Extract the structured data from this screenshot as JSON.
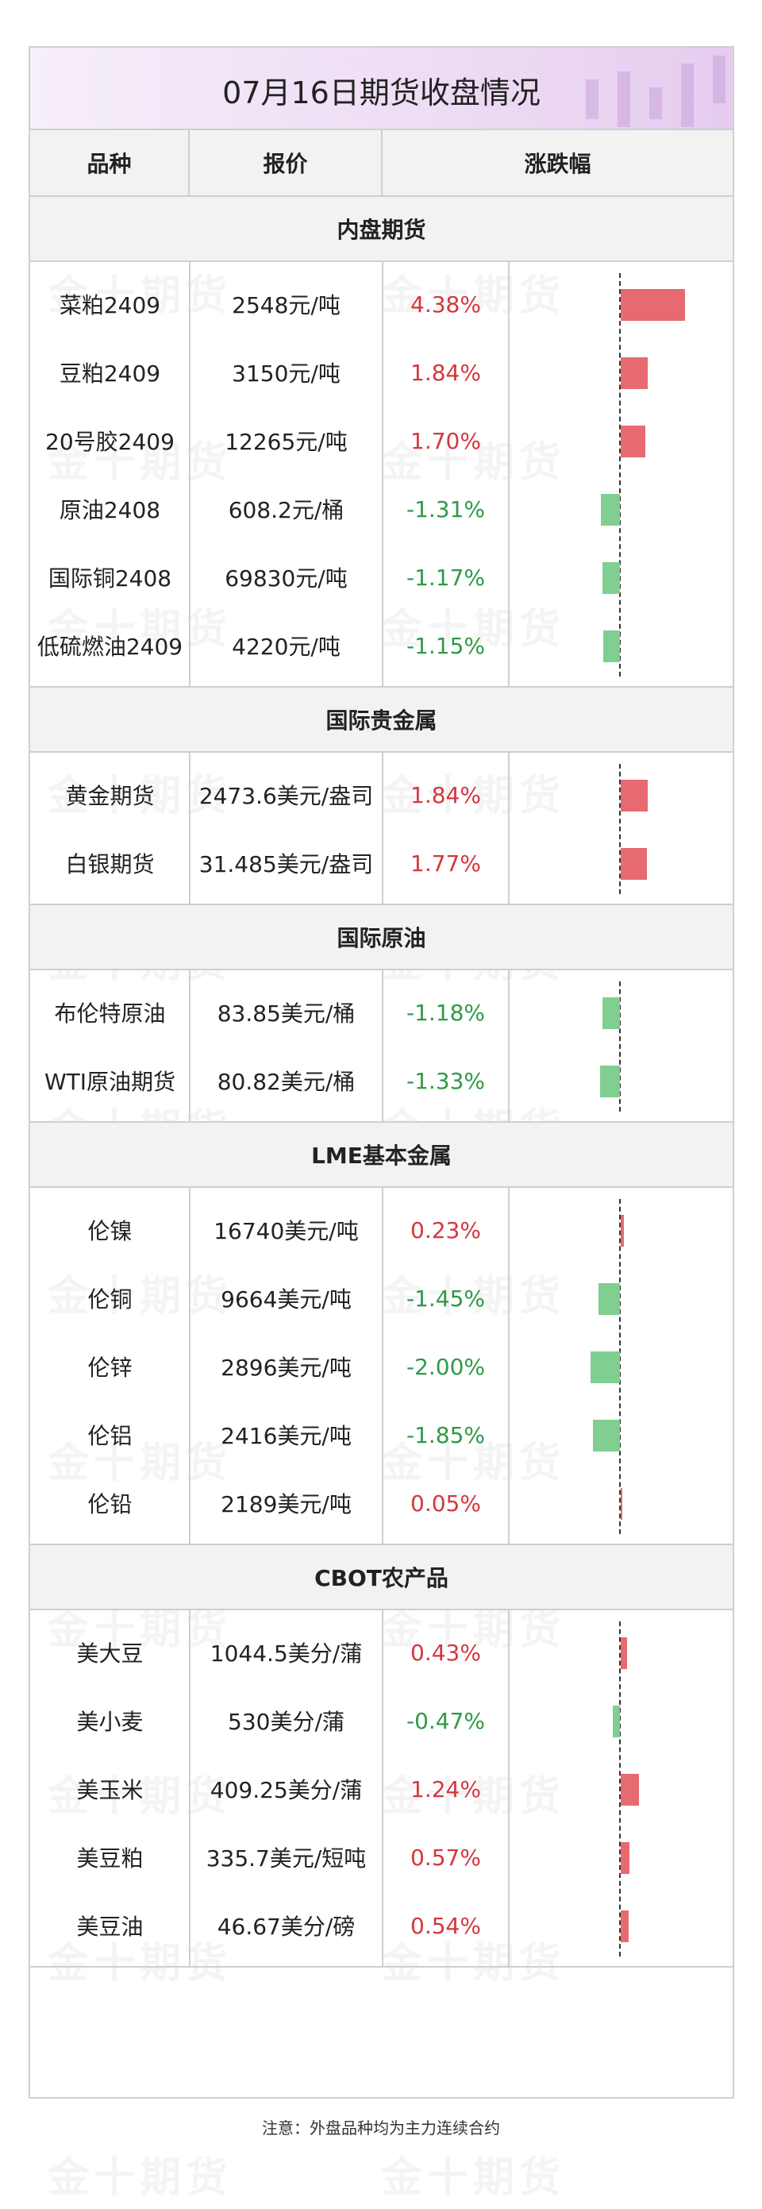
{
  "title": "07月16日期货收盘情况",
  "columns": {
    "name": "品种",
    "price": "报价",
    "change": "涨跌幅"
  },
  "watermark": "金十期货",
  "colors": {
    "up": "#d4373d",
    "down": "#2e9a47",
    "bar_up": "#e66a6f",
    "bar_down": "#80cf90"
  },
  "sections": [
    {
      "title": "内盘期货",
      "rows": [
        {
          "name": "菜粕2409",
          "price": "2548元/吨",
          "change": "4.38%",
          "value": 4.38
        },
        {
          "name": "豆粕2409",
          "price": "3150元/吨",
          "change": "1.84%",
          "value": 1.84
        },
        {
          "name": "20号胶2409",
          "price": "12265元/吨",
          "change": "1.70%",
          "value": 1.7
        },
        {
          "name": "原油2408",
          "price": "608.2元/桶",
          "change": "-1.31%",
          "value": -1.31
        },
        {
          "name": "国际铜2408",
          "price": "69830元/吨",
          "change": "-1.17%",
          "value": -1.17
        },
        {
          "name": "低硫燃油2409",
          "price": "4220元/吨",
          "change": "-1.15%",
          "value": -1.15
        }
      ]
    },
    {
      "title": "国际贵金属",
      "rows": [
        {
          "name": "黄金期货",
          "price": "2473.6美元/盎司",
          "change": "1.84%",
          "value": 1.84
        },
        {
          "name": "白银期货",
          "price": "31.485美元/盎司",
          "change": "1.77%",
          "value": 1.77
        }
      ]
    },
    {
      "title": "国际原油",
      "rows": [
        {
          "name": "布伦特原油",
          "price": "83.85美元/桶",
          "change": "-1.18%",
          "value": -1.18
        },
        {
          "name": "WTI原油期货",
          "price": "80.82美元/桶",
          "change": "-1.33%",
          "value": -1.33
        }
      ]
    },
    {
      "title": "LME基本金属",
      "rows": [
        {
          "name": "伦镍",
          "price": "16740美元/吨",
          "change": "0.23%",
          "value": 0.23
        },
        {
          "name": "伦铜",
          "price": "9664美元/吨",
          "change": "-1.45%",
          "value": -1.45
        },
        {
          "name": "伦锌",
          "price": "2896美元/吨",
          "change": "-2.00%",
          "value": -2.0
        },
        {
          "name": "伦铝",
          "price": "2416美元/吨",
          "change": "-1.85%",
          "value": -1.85
        },
        {
          "name": "伦铅",
          "price": "2189美元/吨",
          "change": "0.05%",
          "value": 0.05
        }
      ]
    },
    {
      "title": "CBOT农产品",
      "rows": [
        {
          "name": "美大豆",
          "price": "1044.5美分/蒲",
          "change": "0.43%",
          "value": 0.43
        },
        {
          "name": "美小麦",
          "price": "530美分/蒲",
          "change": "-0.47%",
          "value": -0.47
        },
        {
          "name": "美玉米",
          "price": "409.25美分/蒲",
          "change": "1.24%",
          "value": 1.24
        },
        {
          "name": "美豆粕",
          "price": "335.7美元/短吨",
          "change": "0.57%",
          "value": 0.57
        },
        {
          "name": "美豆油",
          "price": "46.67美分/磅",
          "change": "0.54%",
          "value": 0.54
        }
      ]
    }
  ],
  "footer": "注意：外盘品种均为主力连续合约"
}
